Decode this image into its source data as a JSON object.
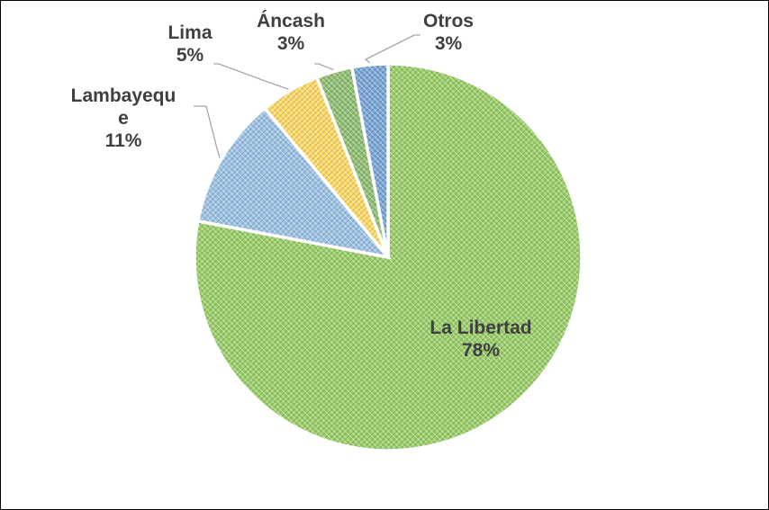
{
  "chart_data": {
    "type": "pie",
    "title": "",
    "categories": [
      "La Libertad",
      "Lambayeque",
      "Lima",
      "Áncash",
      "Otros"
    ],
    "values": [
      78,
      11,
      5,
      3,
      3
    ],
    "value_labels": [
      "78%",
      "11%",
      "5%",
      "3%",
      "3%"
    ],
    "label_lines": [
      [
        "La Libertad"
      ],
      [
        "Lambayequ",
        "e"
      ],
      [
        "Lima"
      ],
      [
        "Áncash"
      ],
      [
        "Otros"
      ]
    ],
    "colors": [
      "#9bcf6a",
      "#9dc3e6",
      "#ffd966",
      "#8fbf73",
      "#7aa6d6"
    ],
    "legend": "none"
  }
}
